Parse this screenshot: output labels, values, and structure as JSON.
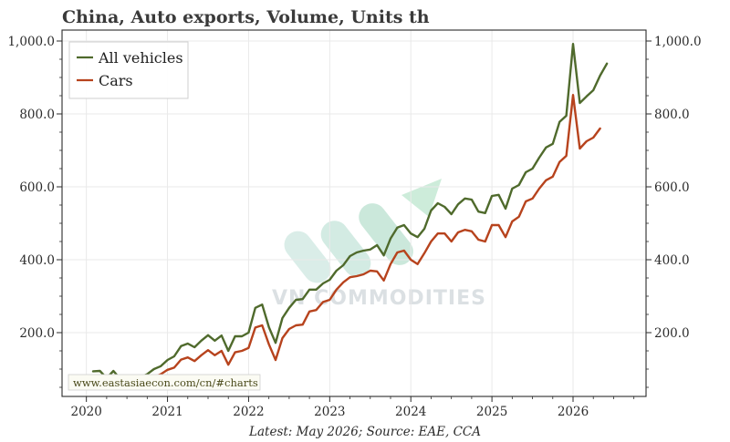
{
  "watermark": "VN COMMODITIES",
  "chart_data": {
    "type": "line",
    "title": "China, Auto exports, Volume, Units th",
    "source_note": "Latest: May 2026; Source: EAE, CCA",
    "url": "www.eastasiaecon.com/cn/#charts",
    "xlim": [
      2019.7,
      2026.9
    ],
    "ylim": [
      25,
      1030
    ],
    "x_ticks": [
      2020,
      2021,
      2022,
      2023,
      2024,
      2025,
      2026
    ],
    "x_tick_labels": [
      "2020",
      "2021",
      "2022",
      "2023",
      "2024",
      "2025",
      "2026"
    ],
    "y_ticks": [
      200,
      400,
      600,
      800,
      1000
    ],
    "y_tick_labels": [
      "200.0",
      "400.0",
      "600.0",
      "800.0",
      "1,000.0"
    ],
    "grid": true,
    "legend_position": "top-left",
    "series": [
      {
        "name": "All vehicles",
        "color": "#4f6a2c",
        "points": [
          [
            2020.083,
            94
          ],
          [
            2020.167,
            95
          ],
          [
            2020.25,
            75
          ],
          [
            2020.333,
            95
          ],
          [
            2020.417,
            73
          ],
          [
            2020.5,
            72
          ],
          [
            2020.583,
            82
          ],
          [
            2020.667,
            78
          ],
          [
            2020.75,
            86
          ],
          [
            2020.833,
            100
          ],
          [
            2020.917,
            108
          ],
          [
            2021.0,
            125
          ],
          [
            2021.083,
            135
          ],
          [
            2021.167,
            163
          ],
          [
            2021.25,
            170
          ],
          [
            2021.333,
            160
          ],
          [
            2021.417,
            178
          ],
          [
            2021.5,
            193
          ],
          [
            2021.583,
            178
          ],
          [
            2021.667,
            192
          ],
          [
            2021.75,
            150
          ],
          [
            2021.833,
            190
          ],
          [
            2021.917,
            190
          ],
          [
            2022.0,
            200
          ],
          [
            2022.083,
            268
          ],
          [
            2022.167,
            277
          ],
          [
            2022.25,
            215
          ],
          [
            2022.333,
            172
          ],
          [
            2022.417,
            240
          ],
          [
            2022.5,
            268
          ],
          [
            2022.583,
            290
          ],
          [
            2022.667,
            292
          ],
          [
            2022.75,
            318
          ],
          [
            2022.833,
            318
          ],
          [
            2022.917,
            335
          ],
          [
            2023.0,
            345
          ],
          [
            2023.083,
            370
          ],
          [
            2023.167,
            385
          ],
          [
            2023.25,
            410
          ],
          [
            2023.333,
            420
          ],
          [
            2023.417,
            425
          ],
          [
            2023.5,
            428
          ],
          [
            2023.583,
            440
          ],
          [
            2023.667,
            412
          ],
          [
            2023.75,
            458
          ],
          [
            2023.833,
            488
          ],
          [
            2023.917,
            495
          ],
          [
            2024.0,
            472
          ],
          [
            2024.083,
            462
          ],
          [
            2024.167,
            485
          ],
          [
            2024.25,
            535
          ],
          [
            2024.333,
            555
          ],
          [
            2024.417,
            545
          ],
          [
            2024.5,
            525
          ],
          [
            2024.583,
            552
          ],
          [
            2024.667,
            568
          ],
          [
            2024.75,
            565
          ],
          [
            2024.833,
            532
          ],
          [
            2024.917,
            528
          ],
          [
            2025.0,
            575
          ],
          [
            2025.083,
            578
          ],
          [
            2025.167,
            540
          ],
          [
            2025.25,
            595
          ],
          [
            2025.333,
            605
          ],
          [
            2025.417,
            640
          ],
          [
            2025.5,
            650
          ],
          [
            2025.583,
            680
          ],
          [
            2025.667,
            708
          ],
          [
            2025.75,
            718
          ],
          [
            2025.833,
            778
          ],
          [
            2025.917,
            795
          ],
          [
            2026.0,
            992
          ],
          [
            2026.083,
            830
          ],
          [
            2026.167,
            848
          ],
          [
            2026.25,
            865
          ],
          [
            2026.333,
            905
          ],
          [
            2026.417,
            938
          ]
        ]
      },
      {
        "name": "Cars",
        "color": "#b7431d",
        "points": [
          [
            2020.083,
            72
          ],
          [
            2020.167,
            72
          ],
          [
            2020.25,
            60
          ],
          [
            2020.333,
            72
          ],
          [
            2020.417,
            56
          ],
          [
            2020.5,
            56
          ],
          [
            2020.583,
            62
          ],
          [
            2020.667,
            60
          ],
          [
            2020.75,
            66
          ],
          [
            2020.833,
            78
          ],
          [
            2020.917,
            86
          ],
          [
            2021.0,
            98
          ],
          [
            2021.083,
            104
          ],
          [
            2021.167,
            126
          ],
          [
            2021.25,
            132
          ],
          [
            2021.333,
            122
          ],
          [
            2021.417,
            138
          ],
          [
            2021.5,
            152
          ],
          [
            2021.583,
            138
          ],
          [
            2021.667,
            150
          ],
          [
            2021.75,
            112
          ],
          [
            2021.833,
            146
          ],
          [
            2021.917,
            150
          ],
          [
            2022.0,
            158
          ],
          [
            2022.083,
            214
          ],
          [
            2022.167,
            220
          ],
          [
            2022.25,
            168
          ],
          [
            2022.333,
            125
          ],
          [
            2022.417,
            185
          ],
          [
            2022.5,
            210
          ],
          [
            2022.583,
            220
          ],
          [
            2022.667,
            222
          ],
          [
            2022.75,
            258
          ],
          [
            2022.833,
            262
          ],
          [
            2022.917,
            284
          ],
          [
            2023.0,
            290
          ],
          [
            2023.083,
            318
          ],
          [
            2023.167,
            338
          ],
          [
            2023.25,
            352
          ],
          [
            2023.333,
            355
          ],
          [
            2023.417,
            360
          ],
          [
            2023.5,
            370
          ],
          [
            2023.583,
            368
          ],
          [
            2023.667,
            343
          ],
          [
            2023.75,
            388
          ],
          [
            2023.833,
            420
          ],
          [
            2023.917,
            425
          ],
          [
            2024.0,
            400
          ],
          [
            2024.083,
            388
          ],
          [
            2024.167,
            418
          ],
          [
            2024.25,
            450
          ],
          [
            2024.333,
            472
          ],
          [
            2024.417,
            472
          ],
          [
            2024.5,
            450
          ],
          [
            2024.583,
            475
          ],
          [
            2024.667,
            482
          ],
          [
            2024.75,
            478
          ],
          [
            2024.833,
            455
          ],
          [
            2024.917,
            450
          ],
          [
            2025.0,
            495
          ],
          [
            2025.083,
            495
          ],
          [
            2025.167,
            462
          ],
          [
            2025.25,
            505
          ],
          [
            2025.333,
            518
          ],
          [
            2025.417,
            560
          ],
          [
            2025.5,
            568
          ],
          [
            2025.583,
            595
          ],
          [
            2025.667,
            618
          ],
          [
            2025.75,
            628
          ],
          [
            2025.833,
            668
          ],
          [
            2025.917,
            685
          ],
          [
            2026.0,
            852
          ],
          [
            2026.083,
            705
          ],
          [
            2026.167,
            725
          ],
          [
            2026.25,
            735
          ],
          [
            2026.333,
            760
          ]
        ]
      }
    ]
  }
}
